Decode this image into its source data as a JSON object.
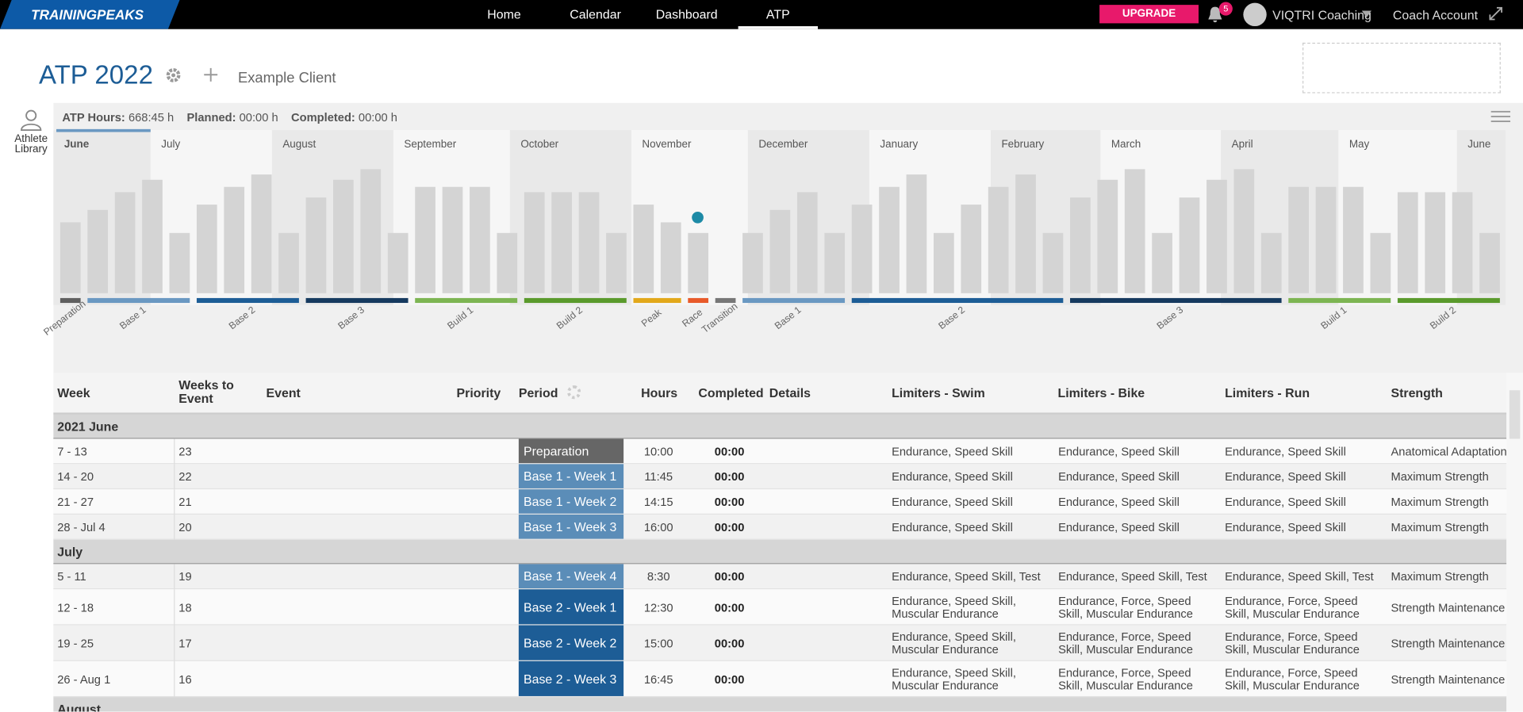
{
  "nav": {
    "logo": "TRAININGPEAKS",
    "items": [
      "Home",
      "Calendar",
      "Dashboard",
      "ATP"
    ],
    "upgrade": "UPGRADE",
    "notifications": 5,
    "account": "VIQTRI Coaching",
    "coach": "Coach Account"
  },
  "header": {
    "title": "ATP 2022",
    "client": "Example Client",
    "library": "Athlete Library"
  },
  "summary": {
    "atp_label": "ATP Hours:",
    "atp": "668:45 h",
    "planned_label": "Planned:",
    "planned": "00:00 h",
    "completed_label": "Completed:",
    "completed": "00:00 h"
  },
  "chart": {
    "months": [
      "June",
      "July",
      "August",
      "September",
      "October",
      "November",
      "December",
      "January",
      "February",
      "March",
      "April",
      "May",
      "June"
    ],
    "weekly_hours": [
      10,
      11.75,
      14.25,
      16,
      8.5,
      12.5,
      15,
      16.75,
      8.5,
      13.5,
      16,
      17.5,
      8.5,
      15,
      15,
      15,
      8.5,
      14.25,
      14.25,
      14.25,
      8.5,
      12.5,
      10,
      8.5,
      null,
      8.5,
      11.75,
      14.25,
      8.5,
      12.5,
      15,
      16.75,
      8.5,
      12.5,
      15,
      16.75,
      8.5,
      13.5,
      16,
      17.5,
      8.5,
      13.5,
      16,
      17.5,
      8.5,
      15,
      15,
      15,
      8.5,
      14.25,
      14.25,
      14.25,
      8.5
    ],
    "bar_color": "#d4d4d4",
    "periods": [
      {
        "label": "Preparation",
        "color": "#5f5f5f"
      },
      {
        "label": "Base 1",
        "color": "#6a98c2"
      },
      {
        "label": "Base 2",
        "color": "#1d5d96"
      },
      {
        "label": "Base 3",
        "color": "#163a5f"
      },
      {
        "label": "Build 1",
        "color": "#7db552"
      },
      {
        "label": "Build 2",
        "color": "#5a9a2c"
      },
      {
        "label": "Peak",
        "color": "#e2a81a"
      },
      {
        "label": "Race",
        "color": "#e85a2a"
      },
      {
        "label": "Transition",
        "color": "#777777"
      },
      {
        "label": "Base 1",
        "color": "#6a98c2"
      },
      {
        "label": "Base 2",
        "color": "#1d5d96"
      },
      {
        "label": "Base 3",
        "color": "#163a5f"
      },
      {
        "label": "Build 1",
        "color": "#7db552"
      },
      {
        "label": "Build 2",
        "color": "#5a9a2c"
      }
    ]
  },
  "table": {
    "columns": [
      "Week",
      "Weeks to Event",
      "Event",
      "Priority",
      "Period",
      "Hours",
      "Completed",
      "Details",
      "Limiters - Swim",
      "Limiters - Bike",
      "Limiters - Run",
      "Strength"
    ],
    "rows": [
      {
        "group": "2021 June"
      },
      {
        "week": "7 - 13",
        "weeks_to_event": "23",
        "period": "Preparation",
        "period_color": "#666666",
        "hours": "10:00",
        "completed": "00:00",
        "swim": "Endurance, Speed Skill",
        "bike": "Endurance, Speed Skill",
        "run": "Endurance, Speed Skill",
        "strength": "Anatomical Adaptation"
      },
      {
        "week": "14 - 20",
        "weeks_to_event": "22",
        "period": "Base 1 - Week 1",
        "period_color": "#5b8db8",
        "hours": "11:45",
        "completed": "00:00",
        "swim": "Endurance, Speed Skill",
        "bike": "Endurance, Speed Skill",
        "run": "Endurance, Speed Skill",
        "strength": "Maximum Strength"
      },
      {
        "week": "21 - 27",
        "weeks_to_event": "21",
        "period": "Base 1 - Week 2",
        "period_color": "#5b8db8",
        "hours": "14:15",
        "completed": "00:00",
        "swim": "Endurance, Speed Skill",
        "bike": "Endurance, Speed Skill",
        "run": "Endurance, Speed Skill",
        "strength": "Maximum Strength"
      },
      {
        "week": "28 - Jul 4",
        "weeks_to_event": "20",
        "period": "Base 1 - Week 3",
        "period_color": "#5b8db8",
        "hours": "16:00",
        "completed": "00:00",
        "swim": "Endurance, Speed Skill",
        "bike": "Endurance, Speed Skill",
        "run": "Endurance, Speed Skill",
        "strength": "Maximum Strength"
      },
      {
        "group": "July"
      },
      {
        "week": "5 - 11",
        "weeks_to_event": "19",
        "period": "Base 1 - Week 4",
        "period_color": "#5b8db8",
        "hours": "8:30",
        "completed": "00:00",
        "swim": "Endurance, Speed Skill, Test",
        "bike": "Endurance, Speed Skill, Test",
        "run": "Endurance, Speed Skill, Test",
        "strength": "Maximum Strength"
      },
      {
        "week": "12 - 18",
        "weeks_to_event": "18",
        "period": "Base 2 - Week 1",
        "period_color": "#1d5d96",
        "hours": "12:30",
        "completed": "00:00",
        "swim": "Endurance, Speed Skill, Muscular Endurance",
        "bike": "Endurance, Force, Speed Skill, Muscular Endurance",
        "run": "Endurance, Force, Speed Skill, Muscular Endurance",
        "strength": "Strength Maintenance"
      },
      {
        "week": "19 - 25",
        "weeks_to_event": "17",
        "period": "Base 2 - Week 2",
        "period_color": "#1d5d96",
        "hours": "15:00",
        "completed": "00:00",
        "swim": "Endurance, Speed Skill, Muscular Endurance",
        "bike": "Endurance, Force, Speed Skill, Muscular Endurance",
        "run": "Endurance, Force, Speed Skill, Muscular Endurance",
        "strength": "Strength Maintenance"
      },
      {
        "week": "26 - Aug 1",
        "weeks_to_event": "16",
        "period": "Base 2 - Week 3",
        "period_color": "#1d5d96",
        "hours": "16:45",
        "completed": "00:00",
        "swim": "Endurance, Speed Skill, Muscular Endurance",
        "bike": "Endurance, Force, Speed Skill, Muscular Endurance",
        "run": "Endurance, Force, Speed Skill, Muscular Endurance",
        "strength": "Strength Maintenance"
      },
      {
        "group": "August"
      }
    ]
  }
}
